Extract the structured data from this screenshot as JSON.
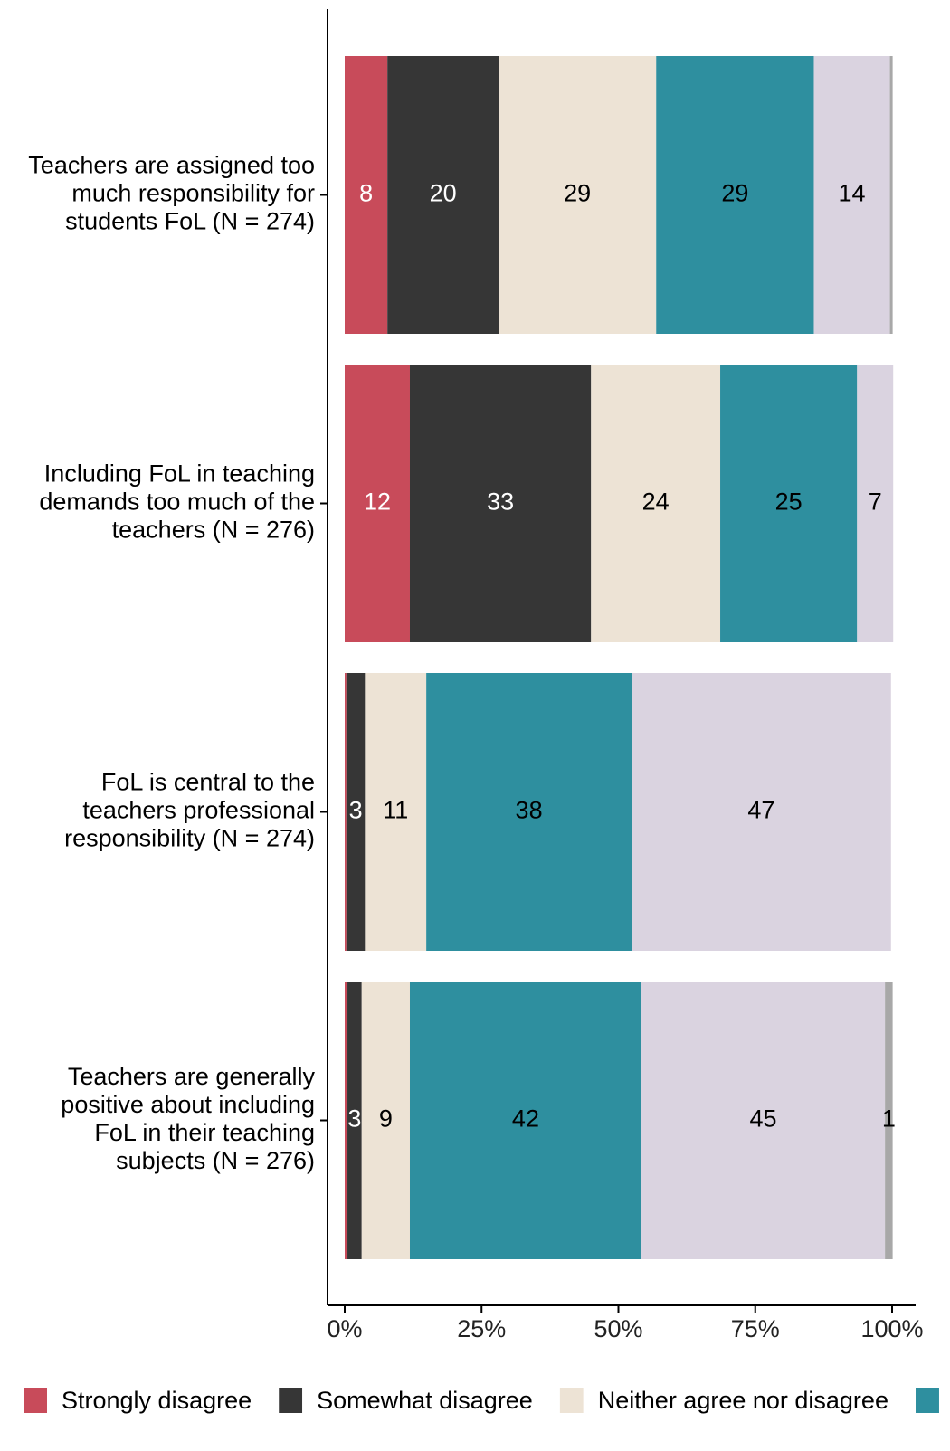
{
  "chart_data": {
    "type": "stacked-bar-horizontal",
    "categories": [
      "Teachers are assigned too\nmuch responsibility for\nstudents FoL (N = 274)",
      "Including FoL in teaching\ndemands too much of the\nteachers (N = 276)",
      "FoL is central to the\nteachers professional\nresponsibility (N = 274)",
      "Teachers are generally\npositive about including\nFoL in their teaching\nsubjects (N = 276)"
    ],
    "series": [
      {
        "name": "Strongly disagree",
        "color": "#c84b5a",
        "values": [
          7.8,
          11.9,
          0.3,
          0.5
        ],
        "value_labels": [
          "8",
          "12",
          null,
          null
        ]
      },
      {
        "name": "Somewhat disagree",
        "color": "#363636",
        "values": [
          20.3,
          33.1,
          3.4,
          2.6
        ],
        "value_labels": [
          "20",
          "33",
          "3",
          "3"
        ]
      },
      {
        "name": "Neither agree nor disagree",
        "color": "#ede3d5",
        "values": [
          28.8,
          23.6,
          11.2,
          8.8
        ],
        "value_labels": [
          "29",
          "24",
          "11",
          "9"
        ]
      },
      {
        "color": "#2e8f9f",
        "values": [
          28.8,
          25.0,
          37.5,
          42.3
        ],
        "value_labels": [
          "29",
          "25",
          "38",
          "42"
        ]
      },
      {
        "color": "#dad3e0",
        "values": [
          13.9,
          6.6,
          47.4,
          44.5
        ],
        "value_labels": [
          "14",
          "7",
          "47",
          "45"
        ]
      },
      {
        "color": "#a8a8a8",
        "values": [
          0.5,
          0,
          0,
          1.4
        ],
        "value_labels": [
          null,
          null,
          null,
          "1"
        ]
      }
    ],
    "xlim": [
      0,
      100
    ],
    "xticks": [
      {
        "value": 0,
        "label": "0%"
      },
      {
        "value": 25,
        "label": "25%"
      },
      {
        "value": 50,
        "label": "50%"
      },
      {
        "value": 75,
        "label": "75%"
      },
      {
        "value": 100,
        "label": "100%"
      }
    ]
  }
}
